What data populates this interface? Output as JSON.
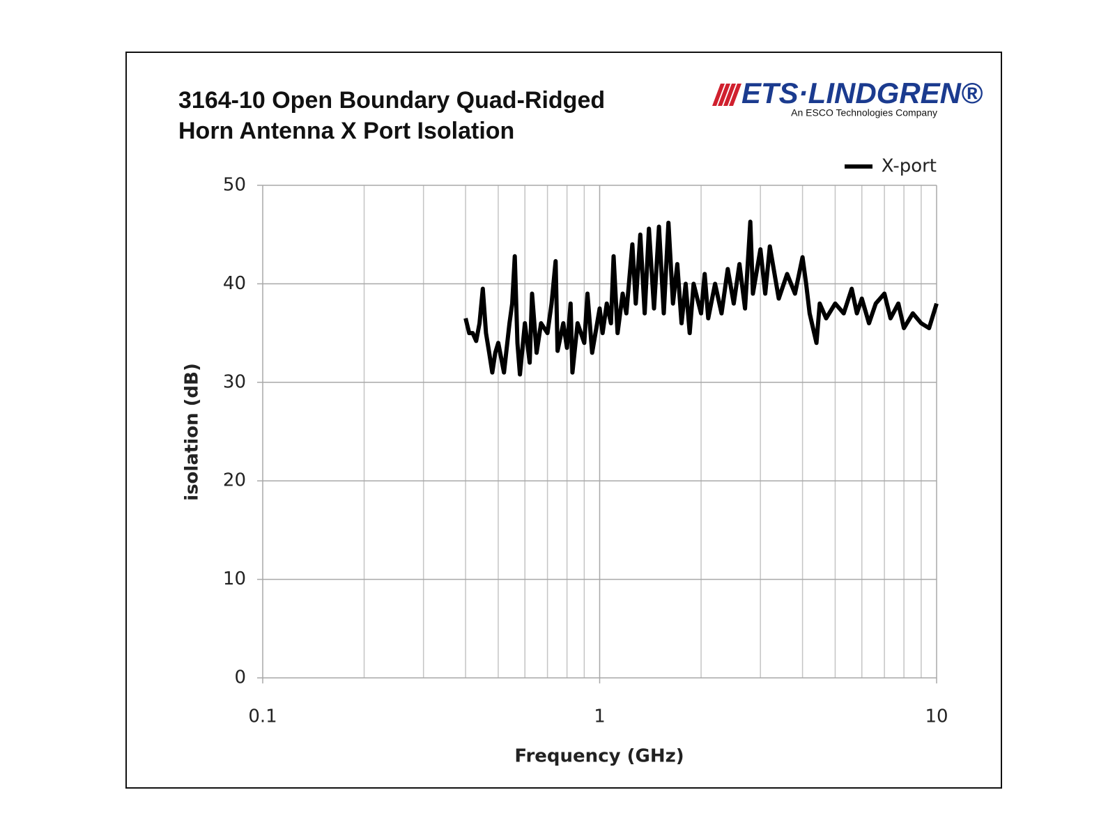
{
  "chart_data": {
    "type": "line",
    "title": "3164-10 Open Boundary Quad-Ridged Horn Antenna X Port Isolation",
    "logo": {
      "name": "ETS·LINDGREN®",
      "tagline": "An ESCO Technologies Company"
    },
    "x_label": "Frequency (GHz)",
    "y_label": "isolation (dB)",
    "xscale": "log",
    "xlim": [
      0.1,
      10
    ],
    "xticks": [
      0.1,
      1,
      10
    ],
    "xminorticks": [
      0.2,
      0.3,
      0.4,
      0.5,
      0.6,
      0.7,
      0.8,
      0.9,
      2,
      3,
      4,
      5,
      6,
      7,
      8,
      9
    ],
    "ylim": [
      0,
      50
    ],
    "yticks": [
      0,
      10,
      20,
      30,
      40,
      50
    ],
    "grid": true,
    "legend": "top-right",
    "x": [
      0.4,
      0.41,
      0.42,
      0.43,
      0.44,
      0.45,
      0.46,
      0.47,
      0.48,
      0.49,
      0.5,
      0.52,
      0.54,
      0.55,
      0.56,
      0.57,
      0.58,
      0.6,
      0.62,
      0.63,
      0.65,
      0.67,
      0.7,
      0.72,
      0.74,
      0.75,
      0.78,
      0.8,
      0.82,
      0.83,
      0.86,
      0.9,
      0.92,
      0.95,
      1.0,
      1.02,
      1.05,
      1.08,
      1.1,
      1.13,
      1.17,
      1.2,
      1.25,
      1.28,
      1.32,
      1.36,
      1.4,
      1.45,
      1.5,
      1.55,
      1.6,
      1.65,
      1.7,
      1.75,
      1.8,
      1.85,
      1.9,
      2.0,
      2.05,
      2.1,
      2.2,
      2.3,
      2.4,
      2.5,
      2.6,
      2.7,
      2.8,
      2.85,
      3.0,
      3.1,
      3.2,
      3.4,
      3.6,
      3.8,
      4.0,
      4.1,
      4.2,
      4.4,
      4.5,
      4.7,
      5.0,
      5.3,
      5.6,
      5.8,
      6.0,
      6.3,
      6.6,
      7.0,
      7.3,
      7.7,
      8.0,
      8.5,
      9.0,
      9.5,
      10
    ],
    "series": [
      {
        "name": "X-port",
        "color": "#000000",
        "values": [
          36.5,
          35,
          35,
          34.2,
          36,
          39.5,
          35,
          33,
          31,
          33,
          34,
          31,
          36,
          38,
          42.8,
          34,
          30.8,
          36,
          32,
          39,
          33,
          36,
          35,
          38,
          42.3,
          33.2,
          36,
          33.5,
          38,
          31,
          36,
          34,
          39,
          33,
          37.5,
          35,
          38,
          36,
          42.8,
          35,
          39,
          37,
          44,
          38,
          45,
          37,
          45.6,
          37.5,
          45.8,
          37,
          46.2,
          38,
          42,
          36,
          40,
          35,
          40,
          37,
          41,
          36.5,
          40,
          37,
          41.5,
          38,
          42,
          37.5,
          46.3,
          39,
          43.5,
          39,
          43.8,
          38.5,
          41,
          39,
          42.7,
          40,
          37,
          34,
          38,
          36.5,
          38,
          37,
          39.5,
          37,
          38.5,
          36,
          38,
          39,
          36.5,
          38,
          35.5,
          37,
          36,
          35.5,
          38
        ]
      }
    ]
  }
}
